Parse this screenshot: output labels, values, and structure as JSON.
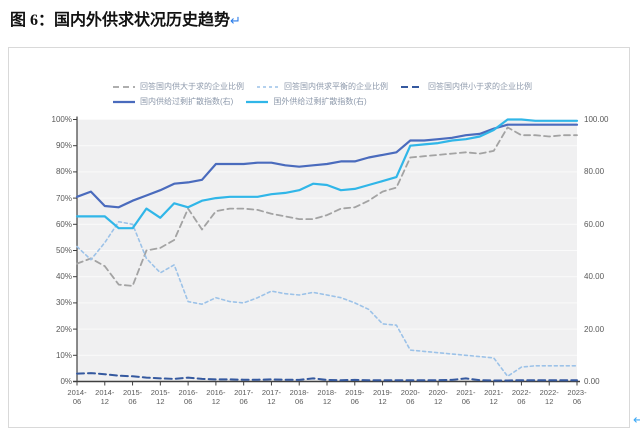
{
  "page": {
    "title": "图 6：国内外供求状况历史趋势",
    "paragraph_mark": "↵",
    "trailing_mark": "↵"
  },
  "legend": {
    "rows": [
      [
        {
          "label": "回答国内供大于求的企业比例",
          "color": "#a3a3a3",
          "dash": "6 4",
          "width": 1.8
        },
        {
          "label": "回答国内供求平衡的企业比例",
          "color": "#9cc2e8",
          "dash": "3 3",
          "width": 1.6
        },
        {
          "label": "回答国内供小于求的企业比例",
          "color": "#35599f",
          "dash": "7 4",
          "width": 2
        }
      ],
      [
        {
          "label": "国内供给过剩扩散指数(右)",
          "color": "#4a6bbd",
          "dash": "",
          "width": 2.2
        },
        {
          "label": "国外供给过剩扩散指数(右)",
          "color": "#30b6e8",
          "dash": "",
          "width": 2.2
        }
      ]
    ]
  },
  "chart_data": {
    "type": "line",
    "title": "国内外供求状况历史趋势",
    "x": [
      "2014-06",
      "2014-09",
      "2014-12",
      "2015-03",
      "2015-06",
      "2015-09",
      "2015-12",
      "2016-03",
      "2016-06",
      "2016-09",
      "2016-12",
      "2017-03",
      "2017-06",
      "2017-09",
      "2017-12",
      "2018-03",
      "2018-06",
      "2018-09",
      "2018-12",
      "2019-03",
      "2019-06",
      "2019-09",
      "2019-12",
      "2020-03",
      "2020-06",
      "2020-09",
      "2020-12",
      "2021-03",
      "2021-06",
      "2021-09",
      "2021-12",
      "2022-03",
      "2022-06",
      "2022-09",
      "2022-12",
      "2023-03",
      "2023-06"
    ],
    "x_tick_labels": [
      "2014-06",
      "2014-12",
      "2015-06",
      "2015-12",
      "2016-06",
      "2016-12",
      "2017-06",
      "2017-12",
      "2018-06",
      "2018-12",
      "2019-06",
      "2019-12",
      "2020-06",
      "2020-12",
      "2021-06",
      "2021-12",
      "2022-06",
      "2022-12",
      "2023-06"
    ],
    "left_axis": {
      "min": 0,
      "max": 100,
      "step": 10,
      "ticks": [
        "0%",
        "10%",
        "20%",
        "30%",
        "40%",
        "50%",
        "60%",
        "70%",
        "80%",
        "90%",
        "100%"
      ]
    },
    "right_axis": {
      "min": 0,
      "max": 100,
      "step": 20,
      "ticks": [
        "0.00",
        "20.00",
        "40.00",
        "60.00",
        "80.00",
        "100.00"
      ]
    },
    "grid": true,
    "legend_position": "top",
    "plot_bg": "#f0f0f1",
    "grid_color": "#fafafa",
    "axis_color": "#404040",
    "series": [
      {
        "name": "回答国内供大于求的企业比例",
        "axis": "left",
        "color": "#a3a3a3",
        "dash": "6 4",
        "width": 1.8,
        "values": [
          45,
          47,
          44,
          37,
          36.5,
          50,
          51,
          54,
          66,
          58,
          65,
          66,
          66,
          65.5,
          64,
          63,
          62,
          62,
          63.5,
          66,
          66.5,
          69,
          72.5,
          74,
          85.5,
          86,
          86.5,
          87,
          87.5,
          87,
          88,
          97,
          94,
          94,
          93.5,
          94,
          94
        ]
      },
      {
        "name": "回答国内供求平衡的企业比例",
        "axis": "left",
        "color": "#9cc2e8",
        "dash": "3 3",
        "width": 1.6,
        "values": [
          51.5,
          46.5,
          53,
          61,
          60,
          47,
          41.5,
          44.5,
          30.5,
          29.5,
          32,
          30.5,
          30,
          32,
          34.5,
          33.5,
          33,
          34,
          33,
          32,
          30,
          27.5,
          22,
          21.5,
          12,
          11.5,
          11,
          10.5,
          10,
          9.5,
          9,
          2,
          5.5,
          6,
          6,
          6,
          6
        ]
      },
      {
        "name": "回答国内供小于求的企业比例",
        "axis": "left",
        "color": "#35599f",
        "dash": "7 4",
        "width": 2,
        "values": [
          3,
          3.2,
          2.8,
          2.2,
          2,
          1.5,
          1.2,
          1,
          1.5,
          1,
          0.8,
          0.8,
          0.7,
          0.7,
          0.8,
          0.7,
          0.6,
          1.2,
          0.6,
          0.5,
          0.6,
          0.5,
          0.5,
          0.5,
          0.5,
          0.5,
          0.5,
          0.6,
          1.2,
          0.5,
          0.4,
          0.4,
          0.5,
          0.5,
          0.5,
          0.5,
          0.5
        ]
      },
      {
        "name": "国内供给过剩扩散指数(右)",
        "axis": "right",
        "color": "#4a6bbd",
        "dash": "",
        "width": 2.2,
        "values": [
          70.5,
          72.5,
          67,
          66.5,
          69,
          71,
          73,
          75.5,
          76,
          77,
          83,
          83,
          83,
          83.5,
          83.5,
          82.5,
          82,
          82.5,
          83,
          84,
          84,
          85.5,
          86.5,
          87.5,
          92,
          92,
          92.5,
          93,
          94,
          94.5,
          96.5,
          98,
          98,
          98,
          98,
          98,
          98
        ]
      },
      {
        "name": "国外供给过剩扩散指数(右)",
        "axis": "right",
        "color": "#30b6e8",
        "dash": "",
        "width": 2.2,
        "values": [
          63,
          63,
          63,
          58.5,
          58.5,
          66,
          62.5,
          68,
          66.5,
          69,
          70,
          70.5,
          70.5,
          70.5,
          71.5,
          72,
          73,
          75.5,
          75,
          73,
          73.5,
          75,
          76.5,
          78,
          90,
          90.5,
          91,
          92,
          92.5,
          93.5,
          96,
          100,
          100,
          99.5,
          99.5,
          99.5,
          99.5
        ]
      }
    ]
  }
}
